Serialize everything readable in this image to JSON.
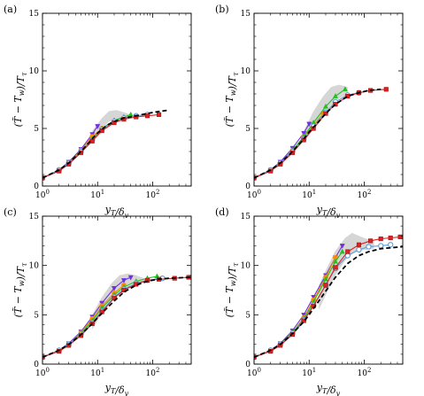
{
  "chart_data": [
    {
      "type": "line",
      "panel_label": "(a)",
      "xlabel": "y_T/δ_v",
      "ylabel": "(T̃ − T_w)/T_τ",
      "xscale": "log",
      "xlim": [
        1,
        500
      ],
      "ylim": [
        0,
        15
      ],
      "x_ticks": [
        "10^0",
        "10^1",
        "10^2"
      ],
      "y_ticks": [
        "0",
        "5",
        "10",
        "15"
      ],
      "grid": false,
      "legend": "none",
      "shaded_band": {
        "x": [
          8,
          12,
          16,
          22,
          30,
          40
        ],
        "lower": [
          4.0,
          5.0,
          5.6,
          5.8,
          5.9,
          6.0
        ],
        "upper": [
          4.8,
          5.9,
          6.5,
          6.6,
          6.4,
          6.2
        ]
      },
      "series": [
        {
          "style": "dashed",
          "color": "#000000",
          "x": [
            1,
            2,
            3,
            5,
            8,
            10,
            15,
            20,
            30,
            50,
            80,
            120,
            200
          ],
          "y": [
            0.7,
            1.4,
            2.0,
            3.0,
            4.1,
            4.6,
            5.3,
            5.6,
            5.9,
            6.1,
            6.3,
            6.45,
            6.6
          ]
        },
        {
          "color": "#7030e0",
          "x": [
            1,
            2,
            3,
            5,
            8,
            10
          ],
          "y": [
            0.7,
            1.4,
            2.1,
            3.2,
            4.5,
            5.2
          ]
        },
        {
          "color": "#ff8c00",
          "x": [
            1,
            2,
            3,
            5,
            8,
            12
          ],
          "y": [
            0.7,
            1.4,
            2.0,
            3.1,
            4.3,
            5.0
          ]
        },
        {
          "color": "#22c022",
          "x": [
            1,
            2,
            3,
            5,
            8,
            12,
            20,
            30,
            40
          ],
          "y": [
            0.7,
            1.4,
            2.0,
            3.0,
            4.1,
            5.0,
            5.7,
            6.0,
            6.2
          ]
        },
        {
          "color": "#5b9bd5",
          "x": [
            1,
            2,
            3,
            5,
            8,
            12,
            20,
            30,
            50,
            80
          ],
          "y": [
            0.7,
            1.4,
            2.0,
            3.0,
            4.0,
            4.9,
            5.6,
            5.9,
            6.1,
            6.2
          ]
        },
        {
          "color": "#e02020",
          "x": [
            1,
            2,
            3,
            5,
            8,
            12,
            20,
            30,
            50,
            80,
            130
          ],
          "y": [
            0.7,
            1.3,
            1.9,
            2.9,
            3.9,
            4.8,
            5.5,
            5.8,
            6.0,
            6.1,
            6.2
          ]
        }
      ]
    },
    {
      "type": "line",
      "panel_label": "(b)",
      "xlabel": "y_T/δ_v",
      "ylabel": "(T̃ − T_w)/T_τ",
      "xscale": "log",
      "xlim": [
        1,
        500
      ],
      "ylim": [
        0,
        15
      ],
      "x_ticks": [
        "10^0",
        "10^1",
        "10^2"
      ],
      "y_ticks": [
        "0",
        "5",
        "10",
        "15"
      ],
      "grid": false,
      "legend": "none",
      "shaded_band": {
        "x": [
          8,
          12,
          18,
          25,
          35,
          50
        ],
        "lower": [
          3.8,
          5.0,
          6.2,
          7.0,
          7.6,
          7.9
        ],
        "upper": [
          4.8,
          6.5,
          7.8,
          8.6,
          8.8,
          8.6
        ]
      },
      "series": [
        {
          "style": "dashed",
          "color": "#000000",
          "x": [
            1,
            2,
            3,
            5,
            8,
            10,
            15,
            20,
            30,
            50,
            80,
            120,
            200
          ],
          "y": [
            0.7,
            1.4,
            2.0,
            3.0,
            4.1,
            4.7,
            5.6,
            6.3,
            7.1,
            7.8,
            8.1,
            8.3,
            8.4
          ]
        },
        {
          "color": "#7030e0",
          "x": [
            1,
            2,
            3,
            5,
            8,
            10
          ],
          "y": [
            0.7,
            1.4,
            2.1,
            3.3,
            4.6,
            5.4
          ]
        },
        {
          "color": "#ff8c00",
          "x": [
            1,
            2,
            3,
            5,
            8,
            12,
            18
          ],
          "y": [
            0.7,
            1.4,
            2.0,
            3.1,
            4.3,
            5.3,
            6.3
          ]
        },
        {
          "color": "#22c022",
          "x": [
            1,
            2,
            3,
            5,
            8,
            12,
            20,
            30,
            45
          ],
          "y": [
            0.7,
            1.4,
            2.0,
            3.1,
            4.3,
            5.5,
            6.9,
            7.8,
            8.4
          ]
        },
        {
          "color": "#5b9bd5",
          "x": [
            1,
            2,
            3,
            5,
            8,
            12,
            20,
            30,
            50,
            80
          ],
          "y": [
            0.7,
            1.4,
            2.0,
            3.0,
            4.1,
            5.2,
            6.4,
            7.3,
            7.9,
            8.1
          ]
        },
        {
          "color": "#e02020",
          "x": [
            1,
            2,
            3,
            5,
            8,
            12,
            20,
            30,
            50,
            80,
            130,
            250
          ],
          "y": [
            0.7,
            1.3,
            1.9,
            2.9,
            4.0,
            5.0,
            6.3,
            7.1,
            7.8,
            8.1,
            8.3,
            8.4
          ]
        }
      ]
    },
    {
      "type": "line",
      "panel_label": "(c)",
      "xlabel": "y_T/δ_v",
      "ylabel": "(T̃ − T_w)/T_τ",
      "xscale": "log",
      "xlim": [
        1,
        500
      ],
      "ylim": [
        0,
        15
      ],
      "x_ticks": [
        "10^0",
        "10^1",
        "10^2"
      ],
      "y_ticks": [
        "0",
        "5",
        "10",
        "15"
      ],
      "grid": false,
      "legend": "none",
      "shaded_band": {
        "x": [
          8,
          12,
          18,
          25,
          35,
          50,
          70
        ],
        "lower": [
          3.5,
          5.2,
          6.6,
          7.5,
          8.0,
          8.2,
          8.3
        ],
        "upper": [
          5.0,
          6.8,
          8.2,
          9.0,
          9.2,
          9.0,
          8.7
        ]
      },
      "series": [
        {
          "style": "dashed",
          "color": "#000000",
          "x": [
            1,
            2,
            3,
            5,
            8,
            10,
            15,
            20,
            30,
            50,
            80,
            120,
            200,
            500
          ],
          "y": [
            0.7,
            1.4,
            2.0,
            3.0,
            4.1,
            4.7,
            5.7,
            6.4,
            7.3,
            8.0,
            8.4,
            8.6,
            8.7,
            8.8
          ]
        },
        {
          "color": "#7030e0",
          "x": [
            1,
            2,
            3,
            5,
            8,
            12,
            20,
            30,
            40
          ],
          "y": [
            0.7,
            1.4,
            2.1,
            3.3,
            4.8,
            6.2,
            7.7,
            8.5,
            8.8
          ]
        },
        {
          "color": "#ff8c00",
          "x": [
            1,
            2,
            3,
            5,
            8,
            12,
            20,
            30
          ],
          "y": [
            0.7,
            1.4,
            2.0,
            3.2,
            4.6,
            5.9,
            7.2,
            8.0
          ]
        },
        {
          "color": "#22c022",
          "x": [
            1,
            2,
            3,
            5,
            8,
            12,
            20,
            30,
            50,
            80,
            120
          ],
          "y": [
            0.7,
            1.4,
            2.0,
            3.1,
            4.4,
            5.7,
            7.0,
            7.8,
            8.4,
            8.7,
            8.9
          ]
        },
        {
          "color": "#5b9bd5",
          "x": [
            1,
            2,
            3,
            5,
            8,
            12,
            20,
            30,
            50,
            80,
            150
          ],
          "y": [
            0.7,
            1.4,
            2.0,
            3.0,
            4.2,
            5.4,
            6.8,
            7.6,
            8.2,
            8.5,
            8.7
          ]
        },
        {
          "color": "#e02020",
          "x": [
            1,
            2,
            3,
            5,
            8,
            12,
            20,
            30,
            50,
            80,
            130,
            250,
            450
          ],
          "y": [
            0.7,
            1.3,
            1.9,
            2.9,
            4.1,
            5.3,
            6.7,
            7.5,
            8.1,
            8.5,
            8.6,
            8.7,
            8.8
          ]
        }
      ]
    },
    {
      "type": "line",
      "panel_label": "(d)",
      "xlabel": "y_T/δ_v",
      "ylabel": "(T̃ − T_w)/T_τ",
      "xscale": "log",
      "xlim": [
        1,
        500
      ],
      "ylim": [
        0,
        15
      ],
      "x_ticks": [
        "10^0",
        "10^1",
        "10^2"
      ],
      "y_ticks": [
        "0",
        "5",
        "10",
        "15"
      ],
      "grid": false,
      "legend": "none",
      "shaded_band": {
        "x": [
          15,
          20,
          30,
          45,
          60,
          80,
          110,
          150
        ],
        "lower": [
          5.5,
          7.0,
          9.0,
          10.5,
          11.2,
          11.5,
          11.6,
          11.7
        ],
        "upper": [
          8.0,
          9.5,
          11.5,
          12.8,
          13.3,
          13.0,
          12.7,
          12.5
        ]
      },
      "series": [
        {
          "style": "dashed",
          "color": "#000000",
          "x": [
            1,
            2,
            3,
            5,
            8,
            10,
            15,
            20,
            30,
            50,
            80,
            120,
            200,
            500
          ],
          "y": [
            0.7,
            1.4,
            2.0,
            3.1,
            4.3,
            5.0,
            6.4,
            7.4,
            8.8,
            10.2,
            11.0,
            11.4,
            11.7,
            11.9
          ]
        },
        {
          "color": "#7030e0",
          "x": [
            1,
            2,
            3,
            5,
            8,
            12,
            20,
            30,
            40
          ],
          "y": [
            0.7,
            1.4,
            2.1,
            3.4,
            5.0,
            6.8,
            9.0,
            10.8,
            12.0
          ]
        },
        {
          "color": "#ff8c00",
          "x": [
            1,
            2,
            3,
            5,
            8,
            12,
            20,
            30
          ],
          "y": [
            0.7,
            1.4,
            2.0,
            3.2,
            4.7,
            6.5,
            8.8,
            10.8
          ]
        },
        {
          "color": "#22c022",
          "x": [
            1,
            2,
            3,
            5,
            8,
            12,
            20,
            30,
            40
          ],
          "y": [
            0.7,
            1.4,
            2.0,
            3.2,
            4.6,
            6.3,
            8.6,
            10.4,
            11.4
          ]
        },
        {
          "color": "#5b9bd5",
          "x": [
            1,
            2,
            3,
            5,
            8,
            12,
            20,
            30,
            50,
            80,
            120,
            200,
            300
          ],
          "y": [
            0.7,
            1.4,
            2.0,
            3.1,
            4.5,
            6.0,
            8.0,
            9.7,
            11.0,
            11.6,
            11.9,
            12.0,
            12.1
          ]
        },
        {
          "color": "#e02020",
          "x": [
            1,
            2,
            3,
            5,
            8,
            12,
            20,
            30,
            50,
            80,
            130,
            200,
            300,
            450
          ],
          "y": [
            0.7,
            1.3,
            1.9,
            3.0,
            4.4,
            5.9,
            8.0,
            9.8,
            11.4,
            12.1,
            12.5,
            12.7,
            12.8,
            12.9
          ]
        }
      ]
    }
  ]
}
